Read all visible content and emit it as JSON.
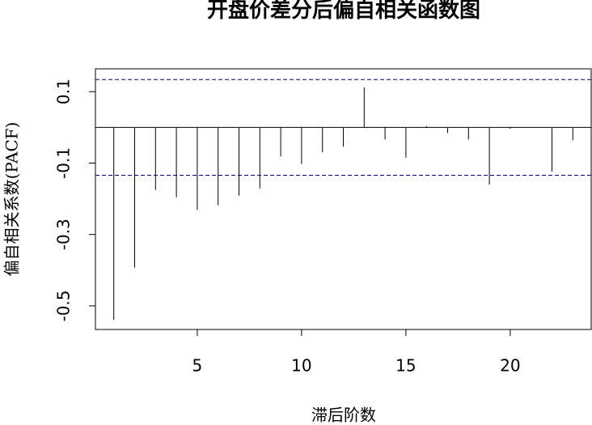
{
  "chart_data": {
    "type": "bar",
    "title": "开盘价差分后偏自相关函数图",
    "x_label": "滞后阶数",
    "y_label": "偏自相关系数(PACF)",
    "x": [
      1,
      2,
      3,
      4,
      5,
      6,
      7,
      8,
      9,
      10,
      11,
      12,
      13,
      14,
      15,
      16,
      17,
      18,
      19,
      20,
      21,
      22,
      23
    ],
    "values": [
      -0.539,
      -0.393,
      -0.175,
      -0.196,
      -0.231,
      -0.218,
      -0.191,
      -0.171,
      -0.081,
      -0.103,
      -0.07,
      -0.054,
      0.112,
      -0.034,
      -0.085,
      0.004,
      -0.016,
      -0.034,
      -0.16,
      -0.004,
      0.001,
      -0.124,
      -0.036
    ],
    "color": "#000000",
    "conf_limits": [
      0.134,
      -0.134
    ],
    "conf_color": "#00008b",
    "xlim": [
      0.12,
      23.88
    ],
    "ylim": [
      -0.566,
      0.164
    ],
    "xticks": [
      5,
      10,
      15,
      20
    ],
    "yticks": [
      0.1,
      -0.1,
      -0.3,
      -0.5
    ]
  }
}
